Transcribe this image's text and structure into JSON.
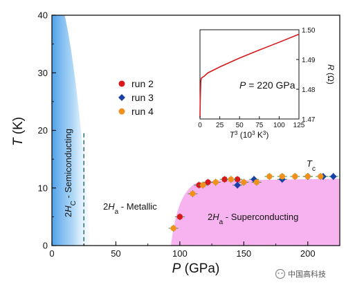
{
  "chart_data": [
    {
      "type": "scatter",
      "xlabel_symbol": "P",
      "xlabel_unit": "(GPa)",
      "ylabel_symbol": "T",
      "ylabel_unit": "(K)",
      "xlim": [
        0,
        225
      ],
      "ylim": [
        0,
        40
      ],
      "xticks": [
        "0",
        "50",
        "100",
        "150",
        "200"
      ],
      "yticks": [
        "0",
        "10",
        "20",
        "30",
        "40"
      ],
      "grid": false,
      "legend_position": "center-left",
      "series": [
        {
          "name": "run 2",
          "color": "#d7191c",
          "marker": "circle",
          "x": [
            100,
            115,
            122,
            135,
            145
          ],
          "y": [
            5.0,
            10.5,
            11.0,
            11.5,
            11.5
          ]
        },
        {
          "name": "run 3",
          "color": "#1a3fa6",
          "marker": "diamond",
          "x": [
            145,
            158,
            180,
            200,
            212,
            220
          ],
          "y": [
            10.5,
            11.5,
            11.5,
            12.0,
            12.0,
            12.0
          ]
        },
        {
          "name": "run 4",
          "color": "#f0911e",
          "marker": "circle",
          "x": [
            95,
            110,
            118,
            128,
            140,
            150,
            160,
            170,
            180,
            190,
            200,
            210
          ],
          "y": [
            3.0,
            9.0,
            10.5,
            11.0,
            11.5,
            11.0,
            11.0,
            12.0,
            12.0,
            12.0,
            12.0,
            12.0
          ]
        }
      ],
      "regions": {
        "semiconducting": {
          "text_main": "2",
          "text_italic": "H",
          "text_sub": "C",
          "text_rest": " - Semiconducting"
        },
        "metallic": {
          "text_main": "2",
          "text_italic": "H",
          "text_sub": "a",
          "text_rest": " - Metallic"
        },
        "superconducting": {
          "text_main": "2",
          "text_italic": "H",
          "text_sub": "a",
          "text_rest": " - Superconducting"
        },
        "tc_label": {
          "italic": "T",
          "sub": "c"
        }
      },
      "boundary_dashed_x": 25,
      "colors": {
        "semiconducting": "#3d9be9",
        "superconducting": "#f7b3f0",
        "tc_label": "#cc33cc",
        "dashed": "#2a6d6d"
      }
    },
    {
      "type": "line",
      "title": "P = 220 GPa",
      "xlabel": "T³ (10³ K³)",
      "ylabel": "R (Ω)",
      "xlim": [
        0,
        125
      ],
      "ylim": [
        1.47,
        1.5
      ],
      "xticks": [
        "0",
        "25",
        "50",
        "75",
        "100",
        "125"
      ],
      "yticks": [
        "1.47",
        "1.48",
        "1.49",
        "1.50"
      ],
      "y_axis_side": "right",
      "color": "#d7191c",
      "x": [
        0,
        0.3,
        1,
        1.5,
        2,
        3,
        5,
        10,
        25,
        50,
        75,
        100,
        125
      ],
      "y": [
        1.4705,
        1.476,
        1.4825,
        1.4835,
        1.4838,
        1.484,
        1.4843,
        1.4855,
        1.4875,
        1.4905,
        1.4932,
        1.4958,
        1.4985
      ]
    }
  ],
  "inset_title_parts": {
    "italic": "P",
    "rest": " = 220 GPa"
  },
  "inset_xlabel_parts": {
    "italic": "T",
    "sup": "3",
    "rest": " (10",
    "sup2": "3",
    "rest2": " K",
    "sup3": "3",
    "close": ")"
  },
  "inset_ylabel_parts": {
    "italic": "R",
    "rest": " (Ω)"
  },
  "watermark": "中国高科技"
}
